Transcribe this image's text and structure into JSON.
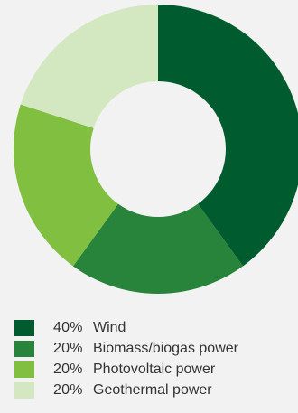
{
  "chart_data": {
    "type": "pie",
    "donut": true,
    "categories": [
      "Wind",
      "Biomass/biogas power",
      "Photovoltaic power",
      "Geothermal power"
    ],
    "values": [
      40,
      20,
      20,
      20
    ],
    "percent_labels": [
      "40%",
      "20%",
      "20%",
      "20%"
    ],
    "colors": [
      "#005c2e",
      "#27843a",
      "#80bf40",
      "#d3e8c0"
    ],
    "legend_position": "bottom-left",
    "title": ""
  }
}
